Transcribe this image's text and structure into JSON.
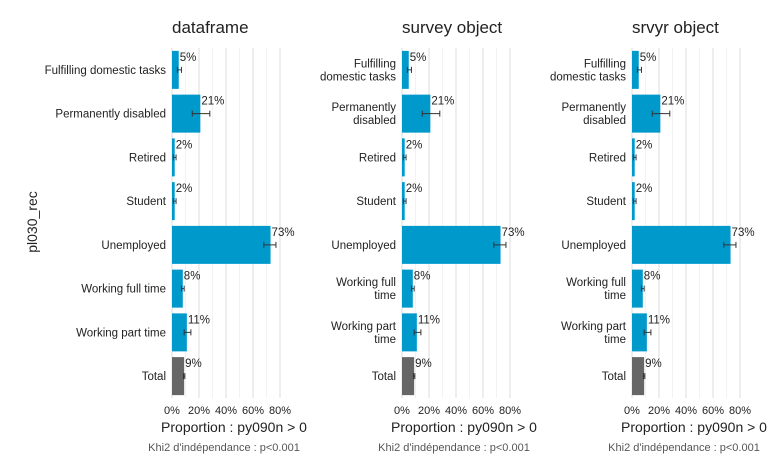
{
  "chart_data": {
    "type": "bar",
    "orientation": "horizontal",
    "ylabel": "pl030_rec",
    "xlabel": "Proportion : py090n > 0",
    "caption": "Khi2 d'indépendance : p<0.001",
    "xlim": [
      0,
      0.8
    ],
    "xticks": [
      "0%",
      "20%",
      "40%",
      "60%",
      "80%"
    ],
    "grid": true,
    "colors": {
      "bar": "#0099cc",
      "total": "#666666",
      "error": "#333333",
      "grid": "#dedede"
    },
    "facets": [
      {
        "title": "dataframe",
        "categories": [
          {
            "lines": [
              "Fulfilling domestic tasks"
            ],
            "value": 0.05,
            "low": 0.04,
            "high": 0.07,
            "label": "5%"
          },
          {
            "lines": [
              "Permanently disabled"
            ],
            "value": 0.21,
            "low": 0.15,
            "high": 0.28,
            "label": "21%"
          },
          {
            "lines": [
              "Retired"
            ],
            "value": 0.02,
            "low": 0.01,
            "high": 0.03,
            "label": "2%"
          },
          {
            "lines": [
              "Student"
            ],
            "value": 0.02,
            "low": 0.01,
            "high": 0.03,
            "label": "2%"
          },
          {
            "lines": [
              "Unemployed"
            ],
            "value": 0.73,
            "low": 0.68,
            "high": 0.77,
            "label": "73%"
          },
          {
            "lines": [
              "Working full time"
            ],
            "value": 0.08,
            "low": 0.07,
            "high": 0.09,
            "label": "8%"
          },
          {
            "lines": [
              "Working part time"
            ],
            "value": 0.11,
            "low": 0.09,
            "high": 0.14,
            "label": "11%"
          },
          {
            "lines": [
              "Total"
            ],
            "value": 0.09,
            "low": 0.085,
            "high": 0.095,
            "label": "9%",
            "total": true
          }
        ]
      },
      {
        "title": "survey object",
        "categories": [
          {
            "lines": [
              "Fulfilling",
              "domestic tasks"
            ],
            "value": 0.05,
            "low": 0.04,
            "high": 0.07,
            "label": "5%"
          },
          {
            "lines": [
              "Permanently",
              "disabled"
            ],
            "value": 0.21,
            "low": 0.15,
            "high": 0.28,
            "label": "21%"
          },
          {
            "lines": [
              "Retired"
            ],
            "value": 0.02,
            "low": 0.01,
            "high": 0.03,
            "label": "2%"
          },
          {
            "lines": [
              "Student"
            ],
            "value": 0.02,
            "low": 0.01,
            "high": 0.03,
            "label": "2%"
          },
          {
            "lines": [
              "Unemployed"
            ],
            "value": 0.73,
            "low": 0.68,
            "high": 0.77,
            "label": "73%"
          },
          {
            "lines": [
              "Working full",
              "time"
            ],
            "value": 0.08,
            "low": 0.07,
            "high": 0.09,
            "label": "8%"
          },
          {
            "lines": [
              "Working part",
              "time"
            ],
            "value": 0.11,
            "low": 0.09,
            "high": 0.14,
            "label": "11%"
          },
          {
            "lines": [
              "Total"
            ],
            "value": 0.09,
            "low": 0.085,
            "high": 0.095,
            "label": "9%",
            "total": true
          }
        ]
      },
      {
        "title": "srvyr object",
        "categories": [
          {
            "lines": [
              "Fulfilling",
              "domestic tasks"
            ],
            "value": 0.05,
            "low": 0.04,
            "high": 0.07,
            "label": "5%"
          },
          {
            "lines": [
              "Permanently",
              "disabled"
            ],
            "value": 0.21,
            "low": 0.15,
            "high": 0.28,
            "label": "21%"
          },
          {
            "lines": [
              "Retired"
            ],
            "value": 0.02,
            "low": 0.01,
            "high": 0.03,
            "label": "2%"
          },
          {
            "lines": [
              "Student"
            ],
            "value": 0.02,
            "low": 0.01,
            "high": 0.03,
            "label": "2%"
          },
          {
            "lines": [
              "Unemployed"
            ],
            "value": 0.73,
            "low": 0.68,
            "high": 0.77,
            "label": "73%"
          },
          {
            "lines": [
              "Working full",
              "time"
            ],
            "value": 0.08,
            "low": 0.07,
            "high": 0.09,
            "label": "8%"
          },
          {
            "lines": [
              "Working part",
              "time"
            ],
            "value": 0.11,
            "low": 0.09,
            "high": 0.14,
            "label": "11%"
          },
          {
            "lines": [
              "Total"
            ],
            "value": 0.09,
            "low": 0.085,
            "high": 0.095,
            "label": "9%",
            "total": true
          }
        ]
      }
    ]
  }
}
